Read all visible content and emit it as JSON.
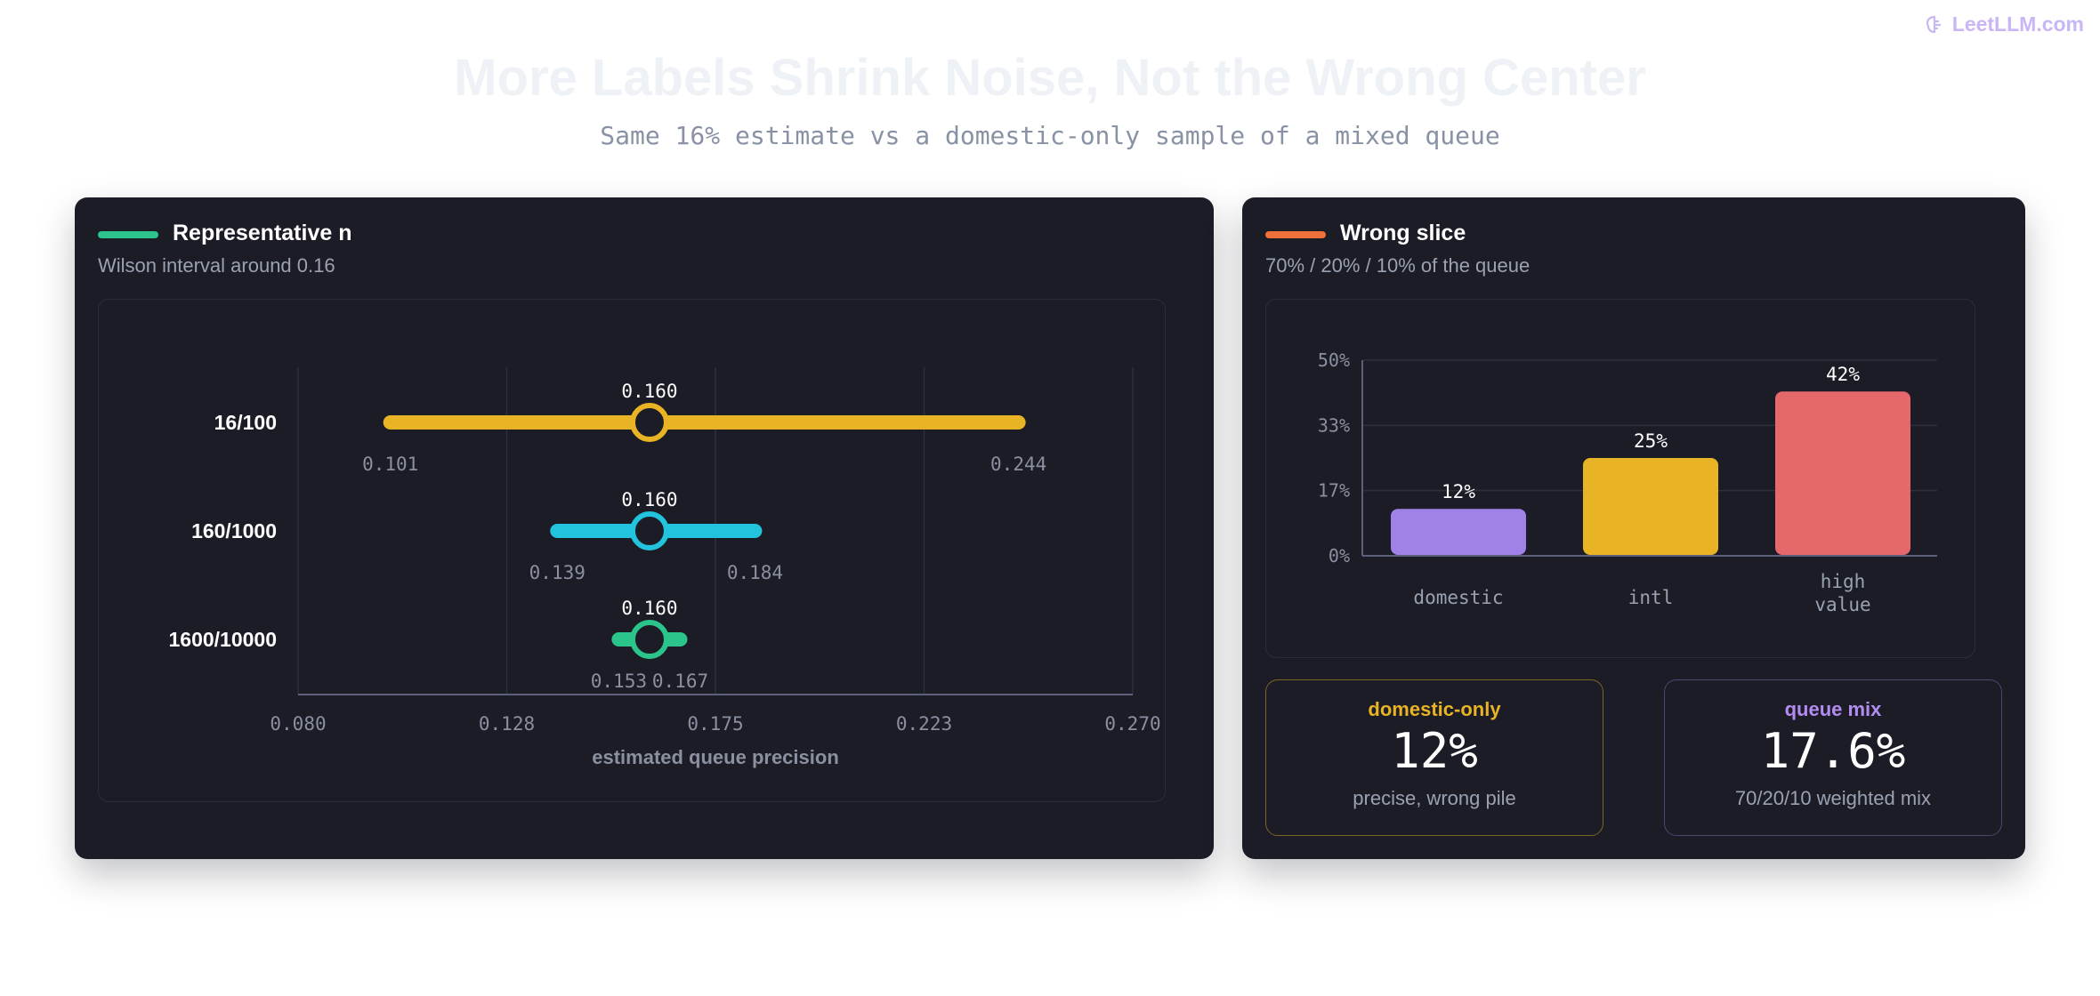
{
  "brand": {
    "name": "LeetLLM.com",
    "color": "#c8b6f5",
    "icon": "brain-icon"
  },
  "title": "More Labels Shrink Noise, Not the Wrong Center",
  "subtitle": "Same 16% estimate vs a domestic-only sample of a mixed queue",
  "left_panel": {
    "title": "Representative n",
    "subtitle": "Wilson interval around 0.16",
    "accent_color": "#2bc48a"
  },
  "right_panel": {
    "title": "Wrong slice",
    "subtitle": "70% / 20% / 10% of the queue",
    "accent_color": "#f0703a"
  },
  "chart_data": [
    {
      "type": "interval",
      "xlabel": "estimated queue precision",
      "xlim": [
        0.08,
        0.27
      ],
      "xticks": [
        "0.080",
        "0.128",
        "0.175",
        "0.223",
        "0.270"
      ],
      "xtick_values": [
        0.08,
        0.1275,
        0.175,
        0.2225,
        0.27
      ],
      "grid": true,
      "rows": [
        {
          "label": "16/100",
          "estimate": 0.16,
          "low": 0.101,
          "high": 0.244,
          "estimate_text": "0.160",
          "low_text": "0.101",
          "high_text": "0.244",
          "color": "#e8b325"
        },
        {
          "label": "160/1000",
          "estimate": 0.16,
          "low": 0.139,
          "high": 0.184,
          "estimate_text": "0.160",
          "low_text": "0.139",
          "high_text": "0.184",
          "color": "#22c3dc"
        },
        {
          "label": "1600/10000",
          "estimate": 0.16,
          "low": 0.153,
          "high": 0.167,
          "estimate_text": "0.160",
          "low_text": "0.153",
          "high_text": "0.167",
          "color": "#2bc48a"
        }
      ]
    },
    {
      "type": "bar",
      "categories": [
        [
          "domestic"
        ],
        [
          "intl"
        ],
        [
          "high",
          "value"
        ]
      ],
      "values": [
        12,
        25,
        42
      ],
      "value_labels": [
        "12%",
        "25%",
        "42%"
      ],
      "colors": [
        "#a081e8",
        "#e8b325",
        "#e5686b"
      ],
      "ylim": [
        0,
        50
      ],
      "yticks": [
        "0%",
        "17%",
        "33%",
        "50%"
      ],
      "ytick_values": [
        0,
        16.67,
        33.33,
        50
      ],
      "grid": true
    }
  ],
  "cards": [
    {
      "label": "domestic-only",
      "value": "12%",
      "note": "precise, wrong pile",
      "color": "#e8b325"
    },
    {
      "label": "queue mix",
      "value": "17.6%",
      "note": "70/20/10 weighted mix",
      "color": "#b38cf2"
    }
  ]
}
